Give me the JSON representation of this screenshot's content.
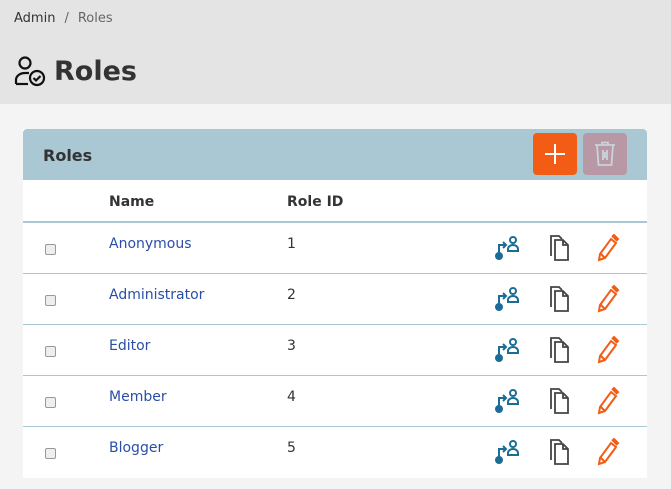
{
  "breadcrumb": {
    "items": [
      "Admin",
      "Roles"
    ],
    "separator": "/"
  },
  "page": {
    "title": "Roles",
    "icon": "user-check-icon"
  },
  "panel": {
    "title": "Roles",
    "add_icon": "plus-icon",
    "delete_icon": "trash-icon"
  },
  "table": {
    "columns": [
      "Name",
      "Role ID"
    ],
    "rows": [
      {
        "name": "Anonymous",
        "id": "1"
      },
      {
        "name": "Administrator",
        "id": "2"
      },
      {
        "name": "Editor",
        "id": "3"
      },
      {
        "name": "Member",
        "id": "4"
      },
      {
        "name": "Blogger",
        "id": "5"
      }
    ],
    "row_icons": [
      "assign-user-icon",
      "copy-icon",
      "edit-icon"
    ]
  },
  "colors": {
    "accent": "#f25c14",
    "panel_header": "#a9c8d4",
    "link": "#2a4ea8",
    "icon_blue": "#1b6d96"
  }
}
